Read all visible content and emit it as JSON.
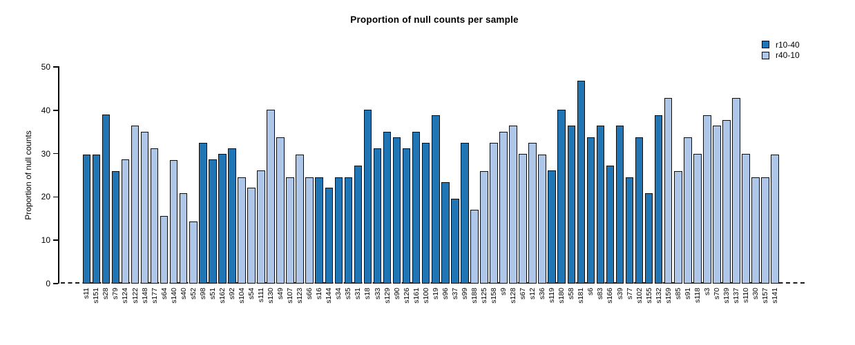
{
  "title": "Proportion of null counts per sample",
  "chart_data": {
    "type": "bar",
    "title": "Proportion of null counts per sample",
    "xlabel": "",
    "ylabel": "Proportion of null counts",
    "ylim": [
      0,
      50
    ],
    "yticks": [
      0,
      10,
      20,
      30,
      40,
      50
    ],
    "grid": false,
    "legend_position": "top-right",
    "zero_line_style": "dashed",
    "legend": [
      {
        "label": "r10-40",
        "color": "#2076b4"
      },
      {
        "label": "r40-10",
        "color": "#aec7e8"
      }
    ],
    "bars": [
      {
        "sample": "s11",
        "value": 29.8,
        "series": "r10-40"
      },
      {
        "sample": "s151",
        "value": 29.8,
        "series": "r10-40"
      },
      {
        "sample": "s28",
        "value": 39.0,
        "series": "r10-40"
      },
      {
        "sample": "s79",
        "value": 26.0,
        "series": "r10-40"
      },
      {
        "sample": "s124",
        "value": 28.6,
        "series": "r40-10"
      },
      {
        "sample": "s122",
        "value": 36.4,
        "series": "r40-10"
      },
      {
        "sample": "s148",
        "value": 35.0,
        "series": "r40-10"
      },
      {
        "sample": "s177",
        "value": 31.2,
        "series": "r40-10"
      },
      {
        "sample": "s64",
        "value": 15.6,
        "series": "r40-10"
      },
      {
        "sample": "s140",
        "value": 28.5,
        "series": "r40-10"
      },
      {
        "sample": "s40",
        "value": 20.8,
        "series": "r40-10"
      },
      {
        "sample": "s52",
        "value": 14.3,
        "series": "r40-10"
      },
      {
        "sample": "s98",
        "value": 32.5,
        "series": "r10-40"
      },
      {
        "sample": "s51",
        "value": 28.6,
        "series": "r10-40"
      },
      {
        "sample": "s162",
        "value": 29.9,
        "series": "r10-40"
      },
      {
        "sample": "s92",
        "value": 31.2,
        "series": "r10-40"
      },
      {
        "sample": "s104",
        "value": 24.5,
        "series": "r40-10"
      },
      {
        "sample": "s54",
        "value": 22.1,
        "series": "r40-10"
      },
      {
        "sample": "s111",
        "value": 26.1,
        "series": "r40-10"
      },
      {
        "sample": "s130",
        "value": 40.2,
        "series": "r40-10"
      },
      {
        "sample": "s49",
        "value": 33.8,
        "series": "r40-10"
      },
      {
        "sample": "s107",
        "value": 24.6,
        "series": "r40-10"
      },
      {
        "sample": "s123",
        "value": 29.8,
        "series": "r40-10"
      },
      {
        "sample": "s66",
        "value": 24.6,
        "series": "r40-10"
      },
      {
        "sample": "s16",
        "value": 24.6,
        "series": "r10-40"
      },
      {
        "sample": "s144",
        "value": 22.1,
        "series": "r10-40"
      },
      {
        "sample": "s34",
        "value": 24.6,
        "series": "r10-40"
      },
      {
        "sample": "s35",
        "value": 24.6,
        "series": "r10-40"
      },
      {
        "sample": "s31",
        "value": 27.3,
        "series": "r10-40"
      },
      {
        "sample": "s18",
        "value": 40.2,
        "series": "r10-40"
      },
      {
        "sample": "s33",
        "value": 31.2,
        "series": "r10-40"
      },
      {
        "sample": "s129",
        "value": 35.0,
        "series": "r10-40"
      },
      {
        "sample": "s90",
        "value": 33.8,
        "series": "r10-40"
      },
      {
        "sample": "s126",
        "value": 31.2,
        "series": "r10-40"
      },
      {
        "sample": "s161",
        "value": 35.0,
        "series": "r10-40"
      },
      {
        "sample": "s100",
        "value": 32.5,
        "series": "r10-40"
      },
      {
        "sample": "s19",
        "value": 38.9,
        "series": "r10-40"
      },
      {
        "sample": "s96",
        "value": 23.4,
        "series": "r10-40"
      },
      {
        "sample": "s37",
        "value": 19.6,
        "series": "r10-40"
      },
      {
        "sample": "s99",
        "value": 32.5,
        "series": "r10-40"
      },
      {
        "sample": "s188",
        "value": 17.0,
        "series": "r40-10"
      },
      {
        "sample": "s125",
        "value": 26.0,
        "series": "r40-10"
      },
      {
        "sample": "s158",
        "value": 32.5,
        "series": "r40-10"
      },
      {
        "sample": "s9",
        "value": 35.0,
        "series": "r40-10"
      },
      {
        "sample": "s128",
        "value": 36.4,
        "series": "r40-10"
      },
      {
        "sample": "s67",
        "value": 29.9,
        "series": "r40-10"
      },
      {
        "sample": "s12",
        "value": 32.5,
        "series": "r40-10"
      },
      {
        "sample": "s36",
        "value": 29.8,
        "series": "r40-10"
      },
      {
        "sample": "s119",
        "value": 26.1,
        "series": "r10-40"
      },
      {
        "sample": "s180",
        "value": 40.2,
        "series": "r10-40"
      },
      {
        "sample": "s58",
        "value": 36.4,
        "series": "r10-40"
      },
      {
        "sample": "s181",
        "value": 46.8,
        "series": "r10-40"
      },
      {
        "sample": "s6",
        "value": 33.8,
        "series": "r10-40"
      },
      {
        "sample": "s83",
        "value": 36.4,
        "series": "r10-40"
      },
      {
        "sample": "s166",
        "value": 27.3,
        "series": "r10-40"
      },
      {
        "sample": "s39",
        "value": 36.4,
        "series": "r10-40"
      },
      {
        "sample": "s77",
        "value": 24.6,
        "series": "r10-40"
      },
      {
        "sample": "s102",
        "value": 33.8,
        "series": "r10-40"
      },
      {
        "sample": "s155",
        "value": 20.9,
        "series": "r10-40"
      },
      {
        "sample": "s132",
        "value": 38.9,
        "series": "r10-40"
      },
      {
        "sample": "s159",
        "value": 42.8,
        "series": "r40-10"
      },
      {
        "sample": "s85",
        "value": 26.0,
        "series": "r40-10"
      },
      {
        "sample": "s91",
        "value": 33.8,
        "series": "r40-10"
      },
      {
        "sample": "s118",
        "value": 29.9,
        "series": "r40-10"
      },
      {
        "sample": "s3",
        "value": 38.9,
        "series": "r40-10"
      },
      {
        "sample": "s70",
        "value": 36.4,
        "series": "r40-10"
      },
      {
        "sample": "s139",
        "value": 37.7,
        "series": "r40-10"
      },
      {
        "sample": "s137",
        "value": 42.8,
        "series": "r40-10"
      },
      {
        "sample": "s110",
        "value": 29.9,
        "series": "r40-10"
      },
      {
        "sample": "s30",
        "value": 24.6,
        "series": "r40-10"
      },
      {
        "sample": "s157",
        "value": 24.6,
        "series": "r40-10"
      },
      {
        "sample": "s141",
        "value": 29.8,
        "series": "r40-10"
      }
    ]
  }
}
